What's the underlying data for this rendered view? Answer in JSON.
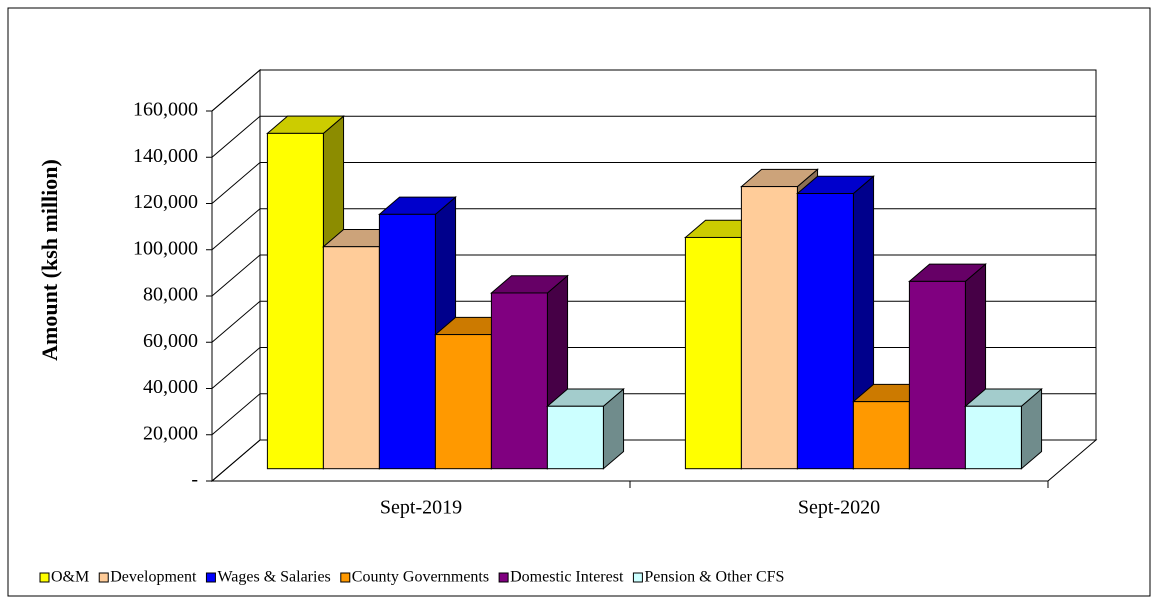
{
  "chart_data": {
    "type": "bar3d",
    "y_label": "Amount  (ksh million)",
    "categories": [
      "Sept-2019",
      "Sept-2020"
    ],
    "series": [
      {
        "name": "O&M",
        "color": "#ffff00",
        "values": [
          145000,
          100000
        ]
      },
      {
        "name": "Development",
        "color": "#ffcc99",
        "values": [
          96000,
          122000
        ]
      },
      {
        "name": "Wages & Salaries",
        "color": "#0000ff",
        "values": [
          110000,
          119000
        ]
      },
      {
        "name": "County Governments",
        "color": "#ff9900",
        "values": [
          58000,
          29000
        ]
      },
      {
        "name": "Domestic Interest",
        "color": "#800080",
        "values": [
          76000,
          81000
        ]
      },
      {
        "name": "Pension & Other CFS",
        "color": "#ccffff",
        "values": [
          27000,
          27000
        ]
      }
    ],
    "ylim": [
      0,
      160000
    ],
    "yticks": [
      {
        "value": 0,
        "label": "-"
      },
      {
        "value": 20000,
        "label": "20,000"
      },
      {
        "value": 40000,
        "label": "40,000"
      },
      {
        "value": 60000,
        "label": "60,000"
      },
      {
        "value": 80000,
        "label": "80,000"
      },
      {
        "value": 100000,
        "label": "100,000"
      },
      {
        "value": 120000,
        "label": "120,000"
      },
      {
        "value": 140000,
        "label": "140,000"
      },
      {
        "value": 160000,
        "label": "160,000"
      }
    ],
    "grid": true,
    "legend": "bottom"
  }
}
